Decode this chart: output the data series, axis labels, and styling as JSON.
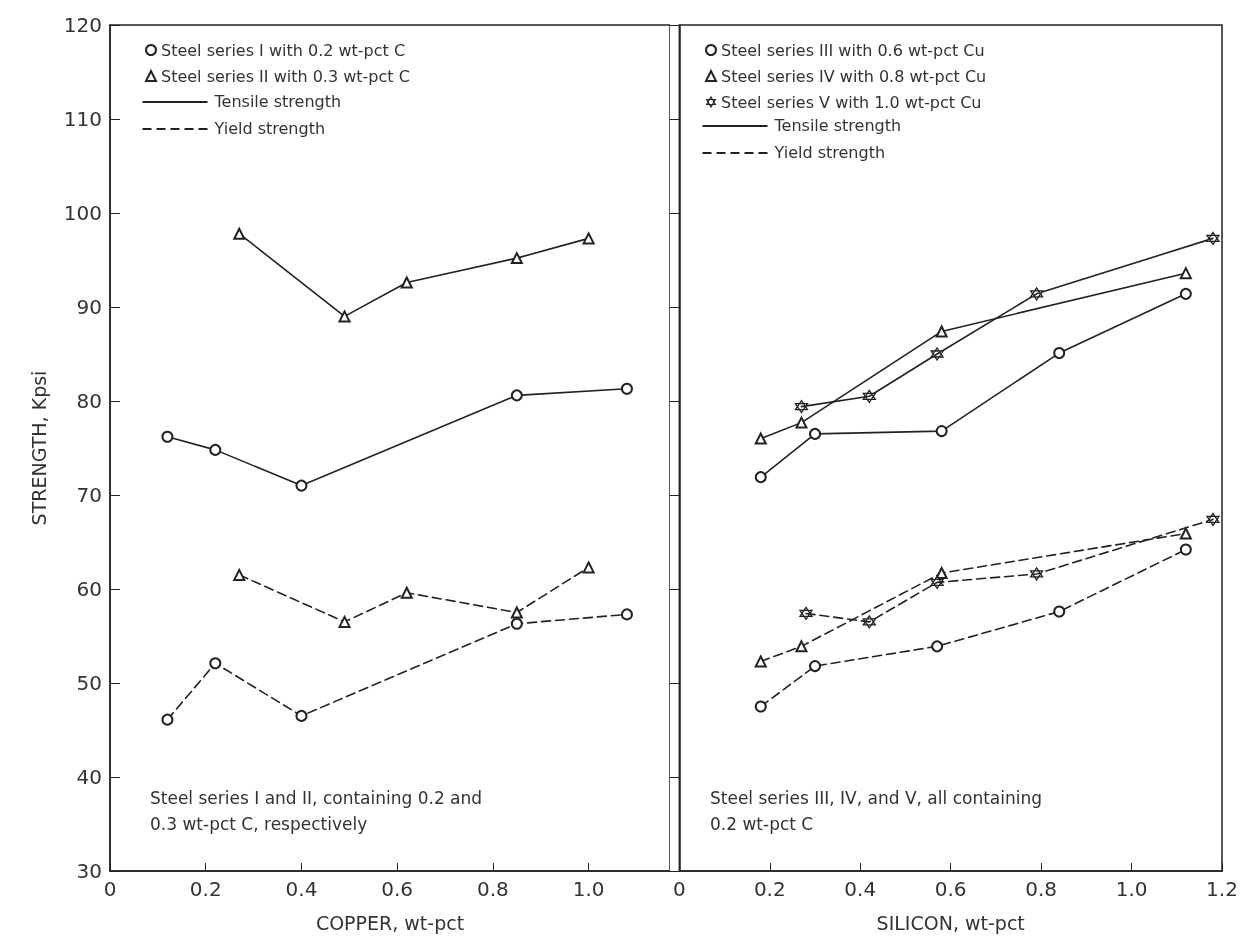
{
  "chart_data": [
    {
      "type": "line",
      "xlabel": "COPPER, wt-pct",
      "ylabel": "STRENGTH, Kpsi",
      "xlim": [
        0,
        1.17
      ],
      "xticks": [
        0,
        0.2,
        0.4,
        0.6,
        0.8,
        {
          "value": 1,
          "label": "1.0"
        }
      ],
      "ylim": [
        30,
        120
      ],
      "yticks": [
        30,
        40,
        50,
        60,
        70,
        80,
        90,
        100,
        110,
        120
      ],
      "grid": false,
      "legend": "top left",
      "series": [
        {
          "name": "Steel series I with 0.2 wt-pct C",
          "color": "#222222",
          "marker": "circle",
          "line_style": "solid",
          "x": [
            0.12,
            0.22,
            0.4,
            0.85,
            1.08
          ],
          "values": [
            76.2,
            74.8,
            71,
            80.6,
            81.3
          ]
        },
        {
          "name": "Steel series II with 0.3 wt-pct C",
          "color": "#222222",
          "marker": "triangle",
          "line_style": "solid",
          "x": [
            0.27,
            0.49,
            0.62,
            0.85,
            1.0
          ],
          "values": [
            97.8,
            89,
            92.6,
            95.2,
            97.3
          ]
        },
        {
          "color": "#222222",
          "marker": "circle",
          "line_style": "dashed",
          "x": [
            0.12,
            0.22,
            0.4,
            0.85,
            1.08
          ],
          "values": [
            46.1,
            52.1,
            46.5,
            56.3,
            57.3
          ]
        },
        {
          "color": "#222222",
          "marker": "triangle",
          "line_style": "dashed",
          "x": [
            0.27,
            0.49,
            0.62,
            0.85,
            1.0
          ],
          "values": [
            61.5,
            56.5,
            59.6,
            57.5,
            62.3
          ]
        }
      ],
      "annotations": [
        "Tensile strength",
        "Yield strength",
        "Steel series I and II, containing 0.2 and 0.3 wt-pct C, respectively"
      ]
    },
    {
      "type": "line",
      "xlabel": "SILICON, wt-pct",
      "xlim": [
        0,
        1.2
      ],
      "xticks": [
        0,
        0.2,
        0.4,
        0.6,
        0.8,
        {
          "value": 1,
          "label": "1.0"
        },
        1.2
      ],
      "ylim": [
        30,
        120
      ],
      "yticks": [
        {
          "value": 30,
          "label": null
        },
        {
          "value": 40,
          "label": null
        },
        {
          "value": 50,
          "label": null
        },
        {
          "value": 60,
          "label": null
        },
        {
          "value": 70,
          "label": null
        },
        {
          "value": 80,
          "label": null
        },
        {
          "value": 90,
          "label": null
        },
        {
          "value": 100,
          "label": null
        },
        {
          "value": 110,
          "label": null
        },
        {
          "value": 120,
          "label": null
        }
      ],
      "tick_labels": "x",
      "grid": false,
      "legend": "top left",
      "series": [
        {
          "name": "Steel series III with 0.6 wt-pct Cu",
          "color": "#222222",
          "marker": "circle",
          "line_style": "solid",
          "x": [
            0.18,
            0.3,
            0.58,
            0.84,
            1.12
          ],
          "values": [
            71.9,
            76.5,
            76.8,
            85.1,
            91.4
          ]
        },
        {
          "name": "Steel series IV with 0.8 wt-pct Cu",
          "color": "#222222",
          "marker": "triangle",
          "line_style": "solid",
          "x": [
            0.18,
            0.27,
            0.58,
            1.12
          ],
          "values": [
            76,
            77.7,
            87.4,
            93.6
          ]
        },
        {
          "name": "Steel series V with 1.0 wt-pct Cu",
          "color": "#222222",
          "marker": "star",
          "line_style": "solid",
          "x": [
            0.27,
            0.42,
            0.57,
            0.79,
            1.18
          ],
          "values": [
            79.4,
            80.5,
            85,
            91.4,
            97.3
          ]
        },
        {
          "color": "#222222",
          "marker": "circle",
          "line_style": "dashed",
          "x": [
            0.18,
            0.3,
            0.57,
            0.84,
            1.12
          ],
          "values": [
            47.5,
            51.8,
            53.9,
            57.6,
            64.2
          ]
        },
        {
          "color": "#222222",
          "marker": "triangle",
          "line_style": "dashed",
          "x": [
            0.18,
            0.27,
            0.58,
            1.12
          ],
          "values": [
            52.3,
            53.9,
            61.7,
            65.9
          ]
        },
        {
          "color": "#222222",
          "marker": "star",
          "line_style": "dashed",
          "x": [
            0.28,
            0.42,
            0.57,
            0.79,
            1.18
          ],
          "values": [
            57.4,
            56.5,
            60.7,
            61.6,
            67.4
          ]
        }
      ],
      "annotations": [
        "Tensile strength",
        "Yield strength",
        "Steel series III, IV, and V, all containing 0.2 wt-pct C"
      ]
    }
  ]
}
